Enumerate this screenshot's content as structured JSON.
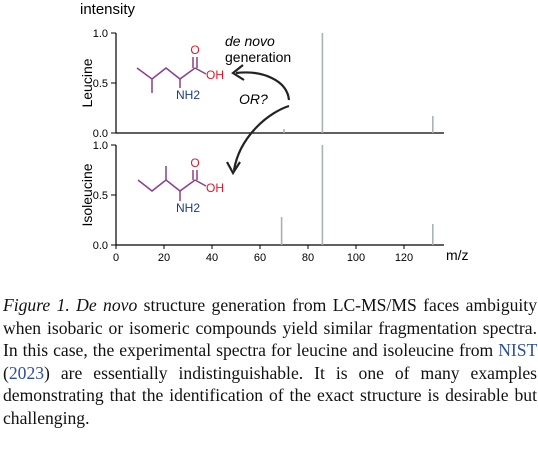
{
  "chart_data": {
    "type": "bar",
    "ylabel": "intensity",
    "xlabel": "m/z",
    "x_ticks": [
      0,
      20,
      40,
      60,
      80,
      100,
      120
    ],
    "xlim": [
      0,
      140
    ],
    "panels": [
      {
        "name": "Leucine",
        "y_ticks": [
          "0.0",
          "0.5",
          "1.0"
        ],
        "ylim": [
          0,
          1.0
        ],
        "peaks": [
          {
            "mz": 70,
            "intensity": 0.04
          },
          {
            "mz": 86,
            "intensity": 1.0
          },
          {
            "mz": 132,
            "intensity": 0.17
          }
        ],
        "molecule": {
          "o_label": "O",
          "oh_label": "OH",
          "nh2_label": "NH2"
        }
      },
      {
        "name": "Isoleucine",
        "y_ticks": [
          "0.0",
          "0.5",
          "1.0"
        ],
        "ylim": [
          0,
          1.0
        ],
        "peaks": [
          {
            "mz": 69,
            "intensity": 0.28
          },
          {
            "mz": 86,
            "intensity": 1.0
          },
          {
            "mz": 132,
            "intensity": 0.21
          }
        ],
        "molecule": {
          "o_label": "O",
          "oh_label": "OH",
          "nh2_label": "NH2"
        }
      }
    ],
    "annotations": {
      "de_novo": "de novo",
      "generation": "generation",
      "or": "OR?"
    },
    "colors": {
      "peak": "#a9b3b6",
      "axis": "#000000",
      "atom": "#e8132b",
      "nitrogen": "#1b3a8c",
      "bond": "#8a3f8f",
      "arrow": "#222222"
    }
  },
  "caption": {
    "label": "Figure 1.",
    "de_novo": "De novo",
    "text_1": " structure generation from LC-MS/MS faces ambiguity when isobaric or isomeric compounds yield similar fragmentation spectra. In this case, the experimental spectra for leucine and isoleucine from ",
    "cite_name": "NIST",
    "cite_paren_open": " (",
    "cite_year": "2023",
    "cite_paren_close": ")",
    "text_2": " are essentially indistinguishable. It is one of many examples demonstrating that the identification of the exact structure is desirable but challenging."
  }
}
